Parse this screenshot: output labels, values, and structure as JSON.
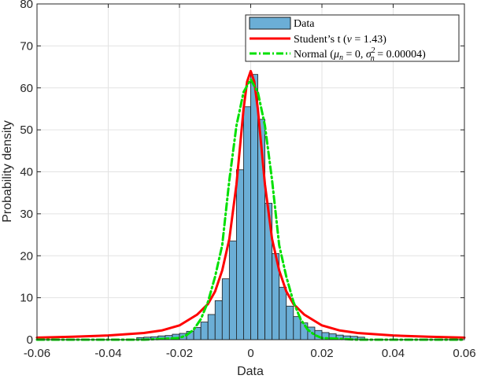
{
  "chart_data": {
    "type": "histogram",
    "xlabel": "Data",
    "ylabel": "Probability density",
    "xlim": [
      -0.06,
      0.06
    ],
    "ylim": [
      0,
      80
    ],
    "grid": true,
    "legend_location": "top-right",
    "x_ticks": [
      "-0.06",
      "-0.04",
      "-0.02",
      "0",
      "0.02",
      "0.04",
      "0.06"
    ],
    "y_ticks": [
      "0",
      "10",
      "20",
      "30",
      "40",
      "50",
      "60",
      "70",
      "80"
    ],
    "x_tick_values": [
      -0.06,
      -0.04,
      -0.02,
      0,
      0.02,
      0.04,
      0.06
    ],
    "y_tick_values": [
      0,
      10,
      20,
      30,
      40,
      50,
      60,
      70,
      80
    ],
    "bin_width": 0.002,
    "bins": [
      {
        "x0": -0.032,
        "value": 0.5
      },
      {
        "x0": -0.03,
        "value": 0.6
      },
      {
        "x0": -0.028,
        "value": 0.7
      },
      {
        "x0": -0.026,
        "value": 0.9
      },
      {
        "x0": -0.024,
        "value": 1.0
      },
      {
        "x0": -0.022,
        "value": 1.3
      },
      {
        "x0": -0.02,
        "value": 1.5
      },
      {
        "x0": -0.018,
        "value": 2.0
      },
      {
        "x0": -0.016,
        "value": 2.9
      },
      {
        "x0": -0.014,
        "value": 4.2
      },
      {
        "x0": -0.012,
        "value": 6.0
      },
      {
        "x0": -0.01,
        "value": 9.3
      },
      {
        "x0": -0.008,
        "value": 14.5
      },
      {
        "x0": -0.006,
        "value": 23.5
      },
      {
        "x0": -0.004,
        "value": 40.5
      },
      {
        "x0": -0.002,
        "value": 55.5
      },
      {
        "x0": 0.0,
        "value": 63.2
      },
      {
        "x0": 0.002,
        "value": 52.5
      },
      {
        "x0": 0.004,
        "value": 32.5
      },
      {
        "x0": 0.006,
        "value": 20.5
      },
      {
        "x0": 0.008,
        "value": 12.5
      },
      {
        "x0": 0.01,
        "value": 8.0
      },
      {
        "x0": 0.012,
        "value": 5.5
      },
      {
        "x0": 0.014,
        "value": 4.0
      },
      {
        "x0": 0.016,
        "value": 3.0
      },
      {
        "x0": 0.018,
        "value": 2.2
      },
      {
        "x0": 0.02,
        "value": 1.7
      },
      {
        "x0": 0.022,
        "value": 1.4
      },
      {
        "x0": 0.024,
        "value": 1.1
      },
      {
        "x0": 0.026,
        "value": 0.9
      },
      {
        "x0": 0.028,
        "value": 0.8
      },
      {
        "x0": 0.03,
        "value": 0.6
      }
    ],
    "series": [
      {
        "name": "Data",
        "kind": "bar",
        "color": "#6baed6"
      },
      {
        "name": "Student’s t (ν = 1.43)",
        "kind": "line",
        "style": "solid",
        "color": "#ff0000",
        "x": [
          -0.06,
          -0.05,
          -0.04,
          -0.03,
          -0.025,
          -0.02,
          -0.015,
          -0.012,
          -0.01,
          -0.008,
          -0.006,
          -0.004,
          -0.003,
          -0.002,
          -0.001,
          0,
          0.001,
          0.002,
          0.003,
          0.004,
          0.006,
          0.008,
          0.01,
          0.012,
          0.015,
          0.02,
          0.025,
          0.03,
          0.04,
          0.05,
          0.06
        ],
        "y": [
          0.5,
          0.7,
          1.0,
          1.6,
          2.2,
          3.4,
          6.0,
          8.5,
          11.5,
          16.5,
          24.0,
          37.0,
          46.0,
          55.0,
          61.5,
          64.0,
          61.5,
          55.0,
          46.0,
          37.0,
          24.0,
          16.5,
          11.5,
          8.5,
          6.0,
          3.4,
          2.2,
          1.6,
          1.0,
          0.7,
          0.5
        ]
      },
      {
        "name": "Normal (μₙ = 0, σₙ² = 0.00004)",
        "kind": "line",
        "style": "dashdot",
        "color": "#00e000",
        "x": [
          -0.06,
          -0.03,
          -0.02,
          -0.018,
          -0.016,
          -0.014,
          -0.012,
          -0.01,
          -0.008,
          -0.006,
          -0.004,
          -0.002,
          0,
          0.002,
          0.004,
          0.006,
          0.008,
          0.01,
          0.012,
          0.014,
          0.016,
          0.018,
          0.02,
          0.03,
          0.06
        ],
        "y": [
          0,
          0,
          0.4,
          1.1,
          2.4,
          4.9,
          9.0,
          15.0,
          22.5,
          38.0,
          51.0,
          59.0,
          62.0,
          59.0,
          51.0,
          38.0,
          22.5,
          15.0,
          9.0,
          4.9,
          2.4,
          1.1,
          0.4,
          0,
          0
        ]
      }
    ]
  },
  "legend": {
    "data_label": "Data",
    "t_prefix": "Student’s t (",
    "t_nu": "ν",
    "t_eq": " = 1.43)",
    "normal_prefix": "Normal (",
    "normal_mu": "μ",
    "normal_mu_sub": "n",
    "normal_mid": " = 0, ",
    "normal_sigma": "σ",
    "normal_sigma_sup": "2",
    "normal_sigma_sub": "n",
    "normal_end": " = 0.00004)"
  }
}
